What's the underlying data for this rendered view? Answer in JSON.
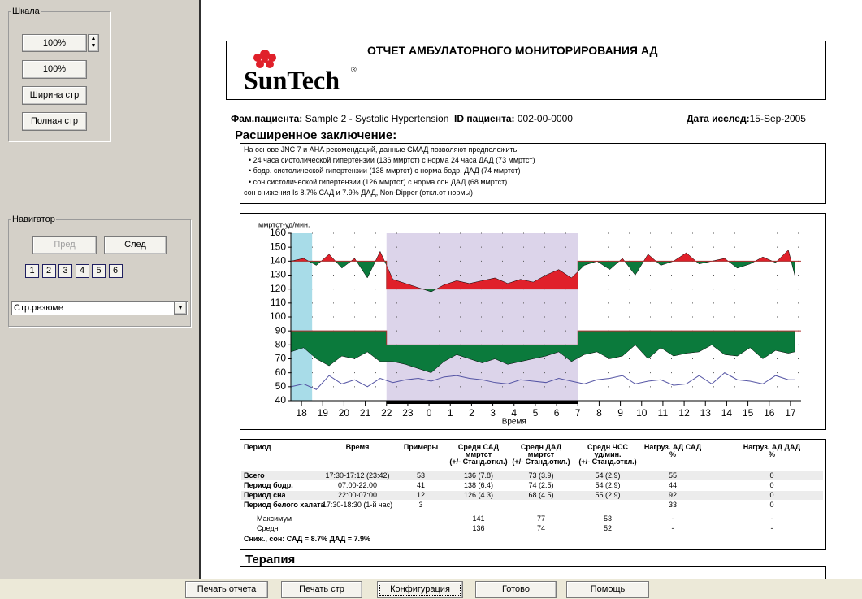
{
  "left_panel": {
    "scale": {
      "title": "Шкала",
      "zoom": "100%",
      "buttons": [
        "100%",
        "Ширина стр",
        "Полная стр"
      ]
    },
    "navigator": {
      "title": "Навигатор",
      "prev": "Пред",
      "next": "След",
      "pages": [
        "1",
        "2",
        "3",
        "4",
        "5",
        "6"
      ],
      "select": "Стр.резюме"
    }
  },
  "report": {
    "title": "ОТЧЕТ АМБУЛАТОРНОГО МОНИТОРИРОВАНИЯ АД",
    "logo": "SunTech",
    "logo_mark": "®",
    "patient_label": "Фам.пациента:",
    "patient": "Sample 2 - Systolic Hypertension",
    "id_label": "ID пациента:",
    "id": "002-00-0000",
    "date_label": "Дата исслед:",
    "date": "15-Sep-2005",
    "conclusion_title": "Расширенное заключение:",
    "conclusion": [
      "На основе JNC 7 и AHA рекомендаций, данные СМАД позволяют предположить",
      "• 24 часа систолической гипертензии (136 ммртст) с норма 24 часа ДАД (73 ммртст)",
      "• бодр. систолической гипертензии (138 ммртст) с норма бодр. ДАД (74 ммртст)",
      "• сон систолической гипертензии (126 ммртст) с норма сон ДАД (68 ммртст)",
      "сон снижения Is 8.7% САД и 7.9% ДАД, Non-Dipper (откл.от нормы)"
    ],
    "table": {
      "header": [
        [
          "Период"
        ],
        [
          "Время"
        ],
        [
          "Примеры"
        ],
        [
          "Средн САД",
          "ммртст",
          "(+/- Станд.откл.)"
        ],
        [
          "Средн ДАД",
          "ммртст",
          "(+/- Станд.откл.)"
        ],
        [
          "Средн ЧСС",
          "уд/мин.",
          "(+/- Станд.откл.)"
        ],
        [
          "Нагруз. АД САД",
          "%"
        ],
        [
          "Нагруз. АД ДАД",
          "%"
        ]
      ],
      "rows": [
        [
          "Всего",
          "17:30-17:12 (23:42)",
          "53",
          "136 (7.8)",
          "73 (3.9)",
          "54 (2.9)",
          "55",
          "0"
        ],
        [
          "Период бодр.",
          "07:00-22:00",
          "41",
          "138 (6.4)",
          "74 (2.5)",
          "54 (2.9)",
          "44",
          "0"
        ],
        [
          "Период сна",
          "22:00-07:00",
          "12",
          "126 (4.3)",
          "68 (4.5)",
          "55 (2.9)",
          "92",
          "0"
        ],
        [
          "Период белого халата",
          "17:30-18:30 (1-й час)",
          "3",
          null,
          null,
          null,
          "33",
          "0"
        ],
        [
          "Максимум",
          null,
          null,
          "141",
          "77",
          "53",
          "-",
          "-"
        ],
        [
          "Средн",
          null,
          null,
          "136",
          "74",
          "52",
          "-",
          "-"
        ]
      ],
      "footer": "Сниж., сон:  САД = 8.7%  ДАД = 7.9%"
    },
    "therapy_title": "Терапия"
  },
  "chart_data": {
    "type": "line",
    "y_label": "ммртст-уд/мин.",
    "x_label": "Время",
    "xlim": [
      17.5,
      41.5
    ],
    "ylim": [
      40,
      160
    ],
    "yticks": [
      40,
      50,
      60,
      70,
      80,
      90,
      100,
      110,
      120,
      130,
      140,
      150,
      160
    ],
    "xticks": [
      18,
      19,
      20,
      21,
      22,
      23,
      {
        "value": 24,
        "label": "0"
      },
      {
        "value": 25,
        "label": "1"
      },
      {
        "value": 26,
        "label": "2"
      },
      {
        "value": 27,
        "label": "3"
      },
      {
        "value": 28,
        "label": "4"
      },
      {
        "value": 29,
        "label": "5"
      },
      {
        "value": 30,
        "label": "6"
      },
      {
        "value": 31,
        "label": "7"
      },
      {
        "value": 32,
        "label": "8"
      },
      {
        "value": 33,
        "label": "9"
      },
      {
        "value": 34,
        "label": "10"
      },
      {
        "value": 35,
        "label": "11"
      },
      {
        "value": 36,
        "label": "12"
      },
      {
        "value": 37,
        "label": "13"
      },
      {
        "value": 38,
        "label": "14"
      },
      {
        "value": 39,
        "label": "15"
      },
      {
        "value": 40,
        "label": "16"
      },
      {
        "value": 41,
        "label": "17"
      }
    ],
    "grid": true,
    "night": [
      22,
      31
    ],
    "white_coat": [
      17.5,
      18.5
    ],
    "thresholds": {
      "day": [
        140,
        90
      ],
      "night": [
        120,
        80
      ]
    },
    "colors": {
      "above": "#e0202a",
      "below": "#0b7a3c",
      "night": "#dcd4ea",
      "white_coat": "#a8dce8",
      "threshold": "#b03030"
    },
    "x": [
      17.5,
      18.1,
      18.7,
      19.3,
      19.9,
      20.5,
      21.1,
      21.7,
      22.3,
      22.9,
      23.5,
      24.1,
      24.7,
      25.3,
      25.9,
      26.5,
      27.1,
      27.7,
      28.3,
      28.9,
      29.5,
      30.1,
      30.7,
      31.3,
      31.9,
      32.5,
      33.1,
      33.7,
      34.3,
      34.9,
      35.5,
      36.1,
      36.7,
      37.3,
      37.9,
      38.5,
      39.1,
      39.7,
      40.3,
      40.9,
      41.2
    ],
    "series": [
      {
        "kind": "area",
        "threshold": 0,
        "values": [
          140,
          142,
          137,
          145,
          135,
          142,
          128,
          147,
          127,
          124,
          121,
          118,
          123,
          126,
          124,
          126,
          128,
          124,
          127,
          125,
          130,
          134,
          128,
          137,
          140,
          134,
          142,
          130,
          145,
          137,
          140,
          146,
          138,
          140,
          142,
          135,
          138,
          143,
          139,
          148,
          130
        ]
      },
      {
        "kind": "area",
        "threshold": 1,
        "values": [
          75,
          78,
          70,
          65,
          72,
          70,
          75,
          68,
          68,
          66,
          63,
          60,
          68,
          73,
          70,
          67,
          70,
          66,
          68,
          70,
          72,
          75,
          68,
          73,
          75,
          70,
          72,
          80,
          70,
          78,
          72,
          74,
          75,
          80,
          73,
          72,
          78,
          70,
          76,
          74,
          75
        ]
      },
      {
        "kind": "line",
        "color": "#5454a4",
        "values": [
          50,
          52,
          48,
          58,
          52,
          55,
          50,
          56,
          53,
          55,
          56,
          54,
          57,
          58,
          56,
          55,
          53,
          52,
          55,
          54,
          53,
          56,
          54,
          52,
          55,
          56,
          58,
          52,
          54,
          55,
          51,
          52,
          58,
          52,
          60,
          55,
          54,
          52,
          58,
          55,
          55
        ]
      }
    ]
  },
  "buttons": [
    "Печать отчета",
    "Печать стр",
    "Конфигурация",
    "Готово",
    "Помощь"
  ]
}
